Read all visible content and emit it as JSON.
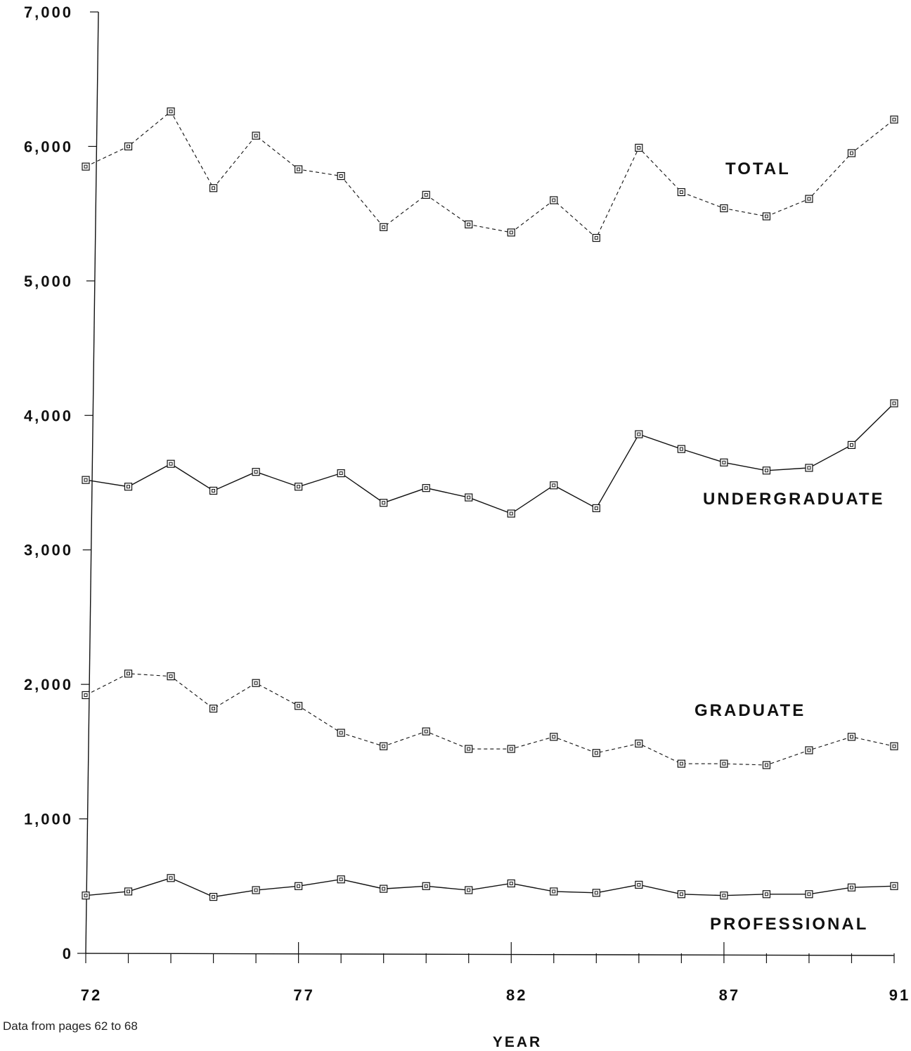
{
  "chart_data": {
    "type": "line",
    "title": "",
    "xlabel": "YEAR",
    "ylabel": "",
    "note": "Data from pages 62 to 68",
    "x": [
      72,
      73,
      74,
      75,
      76,
      77,
      78,
      79,
      80,
      81,
      82,
      83,
      84,
      85,
      86,
      87,
      88,
      89,
      90,
      91
    ],
    "xticks": [
      "72",
      "77",
      "82",
      "87",
      "91"
    ],
    "xtick_values": [
      72,
      77,
      82,
      87,
      91
    ],
    "yticks": [
      "0",
      "1,000",
      "2,000",
      "3,000",
      "4,000",
      "5,000",
      "6,000",
      "7,000"
    ],
    "ytick_values": [
      0,
      1000,
      2000,
      3000,
      4000,
      5000,
      6000,
      7000
    ],
    "xlim": [
      72,
      91
    ],
    "ylim": [
      0,
      7000
    ],
    "grid": false,
    "series": [
      {
        "name": "TOTAL",
        "style": "dashed",
        "values": [
          5850,
          6000,
          6260,
          5690,
          6080,
          5830,
          5780,
          5400,
          5640,
          5420,
          5360,
          5600,
          5320,
          5990,
          5660,
          5540,
          5480,
          5610,
          5950,
          6200
        ]
      },
      {
        "name": "UNDERGRADUATE",
        "style": "solid",
        "values": [
          3520,
          3470,
          3640,
          3440,
          3580,
          3470,
          3570,
          3350,
          3460,
          3390,
          3270,
          3480,
          3310,
          3860,
          3750,
          3650,
          3590,
          3610,
          3780,
          4090
        ]
      },
      {
        "name": "GRADUATE",
        "style": "dashed",
        "values": [
          1920,
          2080,
          2060,
          1820,
          2010,
          1840,
          1640,
          1540,
          1650,
          1520,
          1520,
          1610,
          1490,
          1560,
          1410,
          1410,
          1400,
          1510,
          1610,
          1540
        ]
      },
      {
        "name": "PROFESSIONAL",
        "style": "solid",
        "values": [
          430,
          460,
          560,
          420,
          470,
          500,
          550,
          480,
          500,
          470,
          520,
          460,
          450,
          510,
          440,
          430,
          440,
          440,
          490,
          500
        ]
      }
    ]
  }
}
